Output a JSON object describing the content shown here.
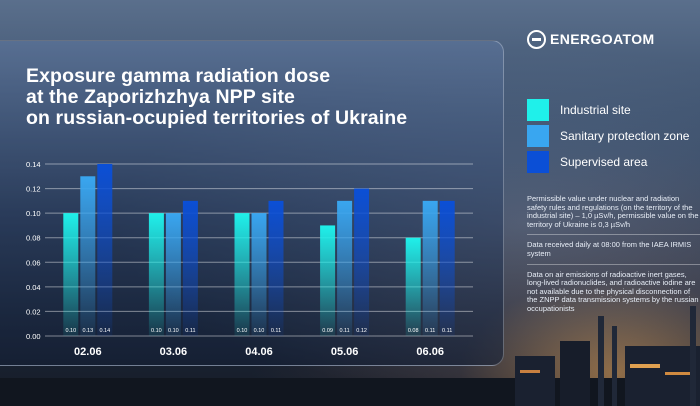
{
  "brand": {
    "name": "ENERGOATOM"
  },
  "title_lines": [
    "Exposure gamma radiation dose",
    "at the Zaporizhzhya NPP site",
    "on russian-ocupied territories of Ukraine"
  ],
  "colors": {
    "industrial_site": "#1ff0ea",
    "sanitary_zone": "#39a6f0",
    "supervised_area": "#0b4fd6"
  },
  "chart_data": {
    "type": "bar",
    "title": "Exposure gamma radiation dose at the Zaporizhzhya NPP site on russian-ocupied territories of Ukraine",
    "categories": [
      "02.06",
      "03.06",
      "04.06",
      "05.06",
      "06.06"
    ],
    "series": [
      {
        "name": "Industrial site",
        "values": [
          0.1,
          0.1,
          0.1,
          0.09,
          0.08
        ],
        "color": "#1ff0ea"
      },
      {
        "name": "Sanitary protection zone",
        "values": [
          0.13,
          0.1,
          0.1,
          0.11,
          0.11
        ],
        "color": "#39a6f0"
      },
      {
        "name": "Supervised area",
        "values": [
          0.14,
          0.11,
          0.11,
          0.12,
          0.11
        ],
        "color": "#0b4fd6"
      }
    ],
    "value_labels": [
      [
        "0.10",
        "0.10",
        "0.10",
        "0.09",
        "0.08"
      ],
      [
        "0.13",
        "0.10",
        "0.10",
        "0.11",
        "0.11"
      ],
      [
        "0.14",
        "0.11",
        "0.11",
        "0.12",
        "0.11"
      ]
    ],
    "y_ticks": [
      "0.00",
      "0.02",
      "0.04",
      "0.06",
      "0.08",
      "0.10",
      "0.12",
      "0.14"
    ],
    "ylim": [
      0,
      0.14
    ],
    "grid": true,
    "legend_position": "right"
  },
  "notes": [
    [
      "Permissible value under nuclear and radiation",
      "safety rules and regulations (on the territory of the",
      "industrial site) – 1,0 µSv/h, permissible value on the",
      "territory of Ukraine is 0,3 µSv/h"
    ],
    [
      "Data received daily at 08:00 from the IAEA IRMIS",
      "system"
    ],
    [
      "Data on air emissions of radioactive inert gases,",
      "long-lived radionuclides, and radioactive iodine are",
      "not available due to the physical disconnection of",
      "the ZNPP data transmission systems by the russian",
      "occupationists"
    ]
  ]
}
